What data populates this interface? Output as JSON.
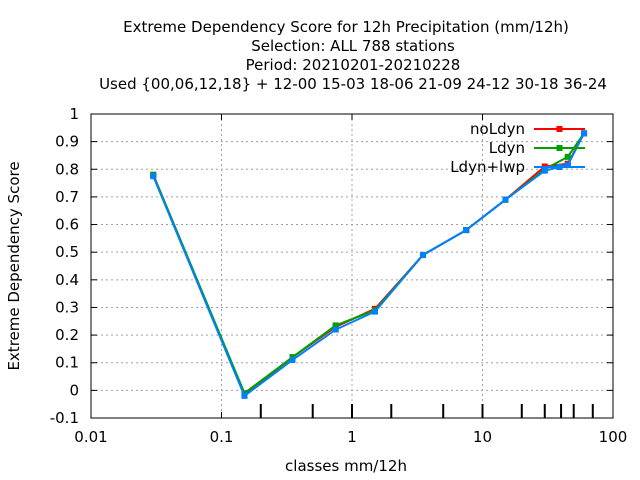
{
  "chart_data": {
    "type": "line",
    "title_lines": [
      "Extreme Dependency Score  for 12h Precipitation (mm/12h)",
      "Selection: ALL    788 stations",
      "Period: 20210201-20210228",
      "Used {00,06,12,18} + 12-00 15-03 18-06 21-09 24-12 30-18 36-24"
    ],
    "xlabel": "classes mm/12h",
    "ylabel": "Extreme Dependency Score",
    "xscale": "log",
    "xlim": [
      0.01,
      100
    ],
    "ylim": [
      -0.1,
      1
    ],
    "x_tick_values": [
      0.01,
      0.1,
      1,
      10,
      100
    ],
    "x_tick_labels": [
      "0.01",
      "0.1",
      "1",
      "10",
      "100"
    ],
    "y_tick_values": [
      -0.1,
      0,
      0.1,
      0.2,
      0.3,
      0.4,
      0.5,
      0.6,
      0.7,
      0.8,
      0.9,
      1
    ],
    "y_tick_labels": [
      "-0.1",
      "0",
      "0.1",
      "0.2",
      "0.3",
      "0.4",
      "0.5",
      "0.6",
      "0.7",
      "0.8",
      "0.9",
      "1"
    ],
    "class_marker_x": [
      0.2,
      0.5,
      1,
      2,
      5,
      10,
      20,
      30,
      40,
      50,
      70
    ],
    "grid": true,
    "legend_position": "top-right",
    "series": [
      {
        "name": "noLdyn",
        "color": "#ff0000",
        "x": [
          0.03,
          0.15,
          0.35,
          0.75,
          1.5,
          3.5,
          7.5,
          15,
          30,
          45,
          60
        ],
        "y": [
          0.78,
          -0.015,
          0.12,
          0.23,
          0.295,
          0.49,
          0.58,
          0.69,
          0.81,
          0.82,
          0.93
        ]
      },
      {
        "name": "Ldyn",
        "color": "#00a000",
        "x": [
          0.03,
          0.15,
          0.35,
          0.75,
          1.5,
          3.5,
          7.5,
          15,
          30,
          45,
          60
        ],
        "y": [
          0.78,
          -0.01,
          0.12,
          0.235,
          0.29,
          0.49,
          0.58,
          0.69,
          0.8,
          0.845,
          0.93
        ]
      },
      {
        "name": "Ldyn+lwp",
        "color": "#0080ff",
        "x": [
          0.03,
          0.15,
          0.35,
          0.75,
          1.5,
          3.5,
          7.5,
          15,
          30,
          45,
          60
        ],
        "y": [
          0.775,
          -0.02,
          0.11,
          0.22,
          0.285,
          0.49,
          0.58,
          0.69,
          0.795,
          0.815,
          0.93
        ]
      }
    ]
  }
}
